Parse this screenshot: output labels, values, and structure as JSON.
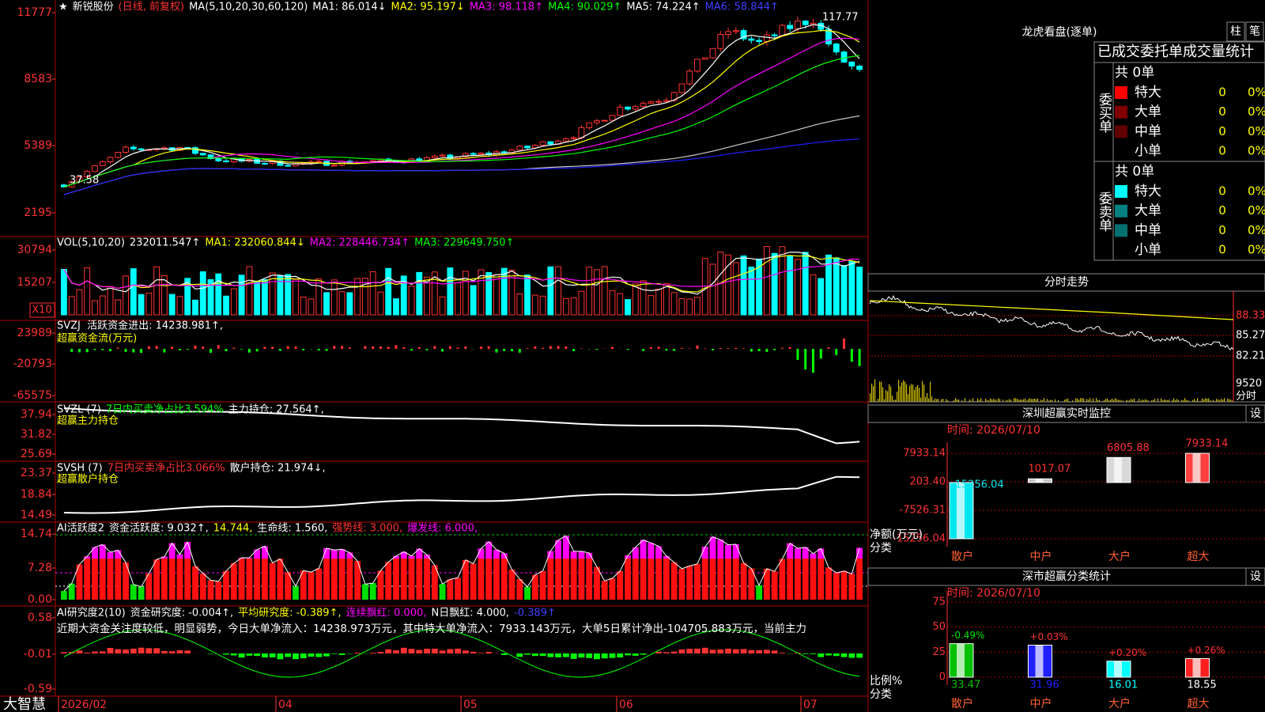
{
  "header": {
    "icon": "★",
    "stock": "新锐股份",
    "mode": "(日线, 前复权)",
    "ma_params": "MA(5,10,20,30,60,120)",
    "ma": [
      "MA1: 86.014↓",
      "MA2: 95.197↓",
      "MA3: 98.118↑",
      "MA4: 90.029↑",
      "MA5: 74.224↑",
      "MA6: 58.844↑"
    ]
  },
  "price_panel": {
    "yaxis": [
      "11777",
      "8583",
      "5389",
      "2195"
    ],
    "high": "117.77",
    "low": "37.58"
  },
  "volume_panel": {
    "yaxis": [
      "30794",
      "15207"
    ],
    "unit": "X10",
    "label": "VOL(5,10,20)",
    "value": "232011.547↑",
    "ma": [
      "MA1: 232060.844↓",
      "MA2: 228446.734↑",
      "MA3: 229649.750↑"
    ]
  },
  "svzj_panel": {
    "yaxis": [
      "23989",
      "-20793",
      "-65575"
    ],
    "label": "SVZJ  活跃资金进出: 14238.981↑,",
    "subtitle": "超赢资金流(万元)"
  },
  "svzl_panel": {
    "yaxis": [
      "37.94",
      "31.82",
      "25.69"
    ],
    "label": "SVZL (7)",
    "ratio": "7日内买卖净占比3.594%",
    "hold": "主力持仓: 27.564↑,",
    "subtitle": "超赢主力持仓"
  },
  "svsh_panel": {
    "yaxis": [
      "23.37",
      "18.84",
      "14.49"
    ],
    "label": "SVSH (7)",
    "ratio": "7日内买卖净占比3.066%",
    "hold": "散户持仓: 21.974↓,",
    "subtitle": "超赢散户持仓"
  },
  "active_panel": {
    "yaxis": [
      "14.74",
      "7.28",
      "0.00"
    ],
    "label": "AI活跃度2",
    "items": [
      "资金活跃度: 9.032↑,",
      "14.744,",
      "生命线: 1.560,",
      "强势线: 3.000,",
      "爆发线: 6.000,"
    ]
  },
  "research_panel": {
    "yaxis": [
      "0.58",
      "-0.01",
      "-0.59"
    ],
    "label": "AI研究度2(10)",
    "items": [
      "资金研究度: -0.004↑,",
      "平均研究度: -0.389↑,",
      "连续飘红: 0.000,",
      "N日飘红: 4.000,",
      "-0.389↑"
    ],
    "comment": "近期大资金关注度较低，明显弱势，今日大单净流入：14238.973万元，其中特大单净流入：7933.143万元，大单5日累计净出-104705.883万元，当前主力"
  },
  "footer": {
    "brand": "大智慧",
    "dates": [
      "2026/02",
      "04",
      "05",
      "06",
      "07"
    ]
  },
  "side": {
    "title": "龙虎看盘(逐单)",
    "buttons": [
      "柱",
      "笔"
    ],
    "tab": "已成交委托单成交量统计",
    "buy": {
      "label": "委买单",
      "total": "共 0单",
      "rows": [
        {
          "name": "特大",
          "count": "0",
          "pct": "0%"
        },
        {
          "name": "大单",
          "count": "0",
          "pct": "0%"
        },
        {
          "name": "中单",
          "count": "0",
          "pct": "0%"
        },
        {
          "name": "小单",
          "count": "0",
          "pct": "0%"
        }
      ]
    },
    "sell": {
      "label": "委卖单",
      "total": "共 0单",
      "rows": [
        {
          "name": "特大",
          "count": "0",
          "pct": "0%"
        },
        {
          "name": "大单",
          "count": "0",
          "pct": "0%"
        },
        {
          "name": "中单",
          "count": "0",
          "pct": "0%"
        },
        {
          "name": "小单",
          "count": "0",
          "pct": "0%"
        }
      ]
    },
    "intraday": {
      "title": "分时走势",
      "yaxis": [
        "88.33",
        "85.27",
        "82.21",
        "9520"
      ],
      "unit": "分时"
    },
    "setting": "设"
  },
  "chart_data": [
    {
      "type": "bar",
      "title": "深圳超赢实时监控",
      "subtitle": "时间: 2026/07/10",
      "ylabel": "净额(万元)",
      "xlabel": "分类",
      "categories": [
        "散户",
        "中户",
        "大户",
        "超大"
      ],
      "values": [
        -15256.04,
        1017.07,
        6805.88,
        7933.14
      ],
      "colors": [
        "#00e5ee",
        "#c8c8c8",
        "#d8d8d8",
        "#ff4040"
      ],
      "ylim": [
        -15256.04,
        7933.14
      ],
      "yticks": [
        {
          "value": 7933.14,
          "label": "7933.14"
        },
        {
          "value": 203.4,
          "label": "203.40"
        },
        {
          "value": -7526.31,
          "label": "-7526.31"
        },
        {
          "value": -15256.04,
          "label": "-15256.04"
        }
      ]
    },
    {
      "type": "bar",
      "title": "深市超赢分类统计",
      "subtitle": "时间: 2026/07/10",
      "ylabel": "比例%",
      "xlabel": "分类",
      "categories": [
        "散户",
        "中户",
        "大户",
        "超大"
      ],
      "values": [
        33.47,
        31.96,
        16.01,
        18.55
      ],
      "changes": [
        "-0.49%",
        "+0.03%",
        "+0.20%",
        "+0.26%"
      ],
      "colors": [
        "#00c000",
        "#2020ff",
        "#00ffff",
        "#ff2020"
      ],
      "ylim": [
        0,
        75
      ],
      "yticks": [
        0,
        25,
        50,
        75
      ]
    }
  ]
}
